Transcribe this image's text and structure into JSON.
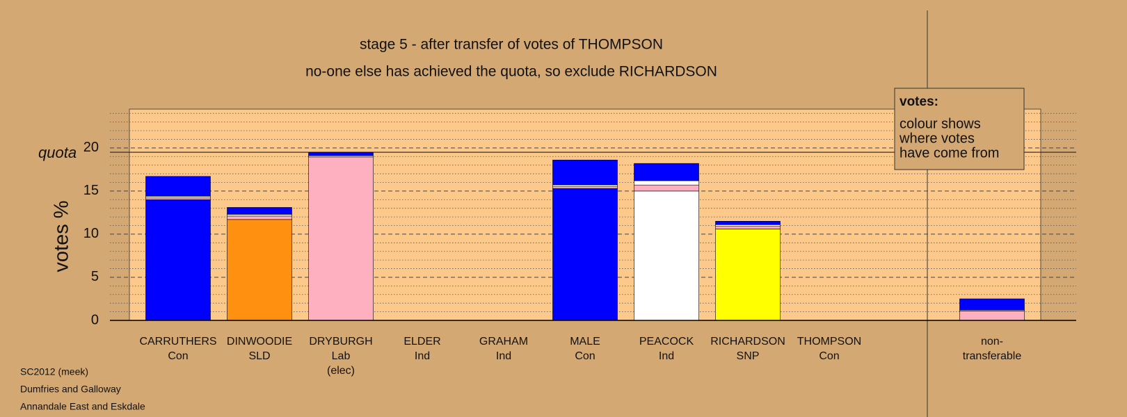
{
  "chart_data": {
    "type": "stacked_bar",
    "title": "stage 5 - after transfer of votes of THOMPSON",
    "subtitle": "no-one else has achieved the quota, so exclude RICHARDSON",
    "y_label": "votes %",
    "quota_label": "quota",
    "quota": 19.5,
    "categories": [
      "CARRUTHERS",
      "DINWOODIE",
      "DRYBURGH",
      "ELDER",
      "GRAHAM",
      "MALE",
      "PEACOCK",
      "RICHARDSON",
      "THOMPSON",
      "non-"
    ],
    "parties": [
      "Con",
      "SLD",
      "Lab",
      "Ind",
      "Ind",
      "Con",
      "Ind",
      "SNP",
      "Con",
      "transferable"
    ],
    "status": [
      null,
      null,
      "(elec)",
      null,
      null,
      null,
      null,
      null,
      null,
      null
    ],
    "series": [
      {
        "colors": [
          "#0000ff",
          "#ff9010",
          "#ffb0c0",
          "#ffffff",
          "#ffffff",
          "#0000ff",
          "#ffffff",
          "#ffff00",
          "#0000ff",
          "#ffb0c0"
        ],
        "values": [
          14.0,
          11.7,
          18.95,
          0,
          0,
          15.3,
          15.0,
          10.6,
          0,
          1.1
        ]
      },
      {
        "color": "#ffb0c0",
        "values": [
          0.2,
          0.4,
          0,
          0,
          0,
          0.2,
          0.7,
          0.3,
          0,
          0
        ]
      },
      {
        "color": "#ffffff",
        "values": [
          0.2,
          0.2,
          0.15,
          0,
          0,
          0.2,
          0.5,
          0.2,
          0,
          0.1
        ]
      },
      {
        "color": "#0000ff",
        "values": [
          2.3,
          0.8,
          0.35,
          0,
          0,
          2.9,
          2.0,
          0.4,
          0,
          1.3
        ]
      }
    ],
    "ylim": [
      0,
      24.5
    ],
    "yticks": [
      0,
      5,
      10,
      15,
      20
    ],
    "y_minor_ticks": [
      1,
      2,
      3,
      4,
      6,
      7,
      8,
      9,
      11,
      12,
      13,
      14,
      16,
      17,
      18,
      19,
      21,
      22,
      23,
      24
    ],
    "grid": true,
    "legend_title": "votes:",
    "legend_text": [
      "colour shows",
      "where votes",
      "have come from"
    ],
    "footer": [
      "SC2012 (meek)",
      "Dumfries and Galloway",
      "Annandale East and Eskdale"
    ]
  }
}
